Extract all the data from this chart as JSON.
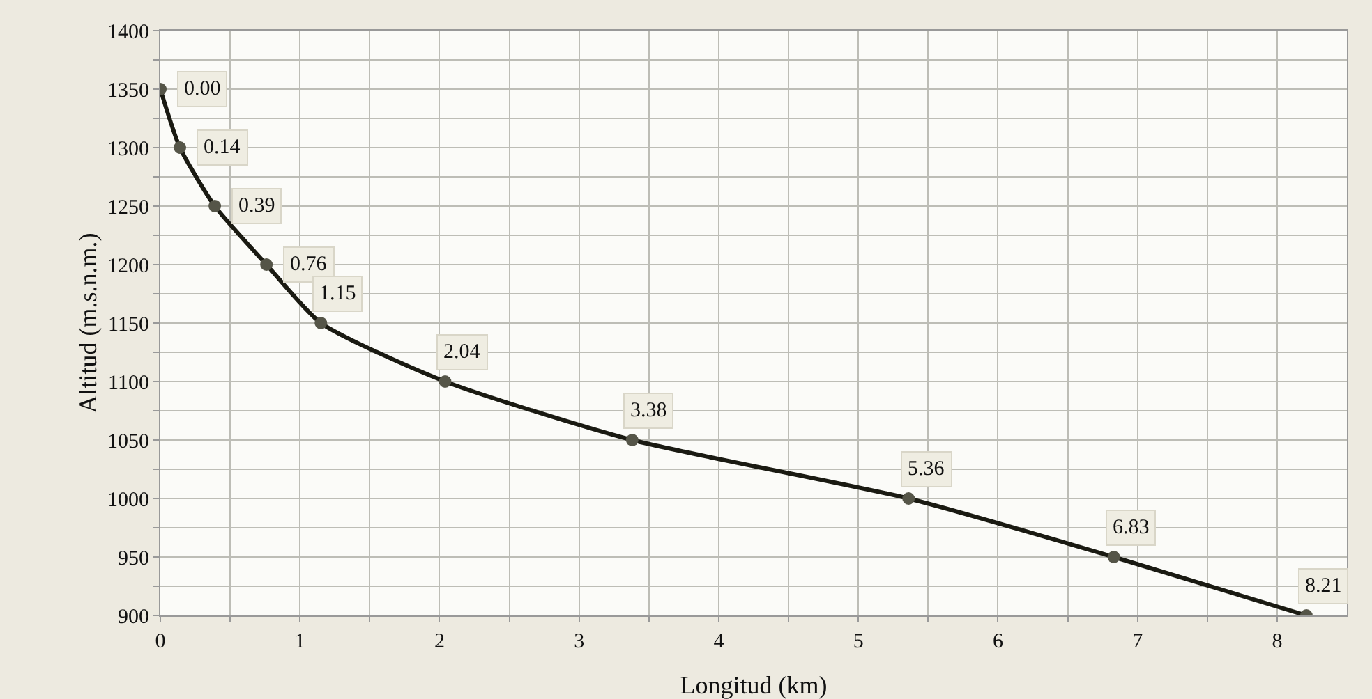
{
  "chart_data": {
    "type": "line",
    "xlabel": "Longitud (km)",
    "ylabel": "Altitud (m.s.n.m.)",
    "x": [
      0,
      0.14,
      0.39,
      0.76,
      1.15,
      2.04,
      3.38,
      5.36,
      6.83,
      8.21
    ],
    "series": [
      {
        "color": "#1a1a12",
        "values": [
          1350,
          1300,
          1250,
          1200,
          1150,
          1100,
          1050,
          1000,
          950,
          900
        ]
      }
    ],
    "annotations": [
      {
        "text": "0.00",
        "x": 0,
        "y": 1350
      },
      {
        "text": "0.14",
        "x": 0.14,
        "y": 1300
      },
      {
        "text": "0.39",
        "x": 0.39,
        "y": 1250
      },
      {
        "text": "0.76",
        "x": 0.76,
        "y": 1200
      },
      {
        "text": "1.15",
        "x": 1.15,
        "y": 1150
      },
      {
        "text": "2.04",
        "x": 2.04,
        "y": 1100
      },
      {
        "text": "3.38",
        "x": 3.38,
        "y": 1050
      },
      {
        "text": "5.36",
        "x": 5.36,
        "y": 1000
      },
      {
        "text": "6.83",
        "x": 6.83,
        "y": 950
      },
      {
        "text": "8.21",
        "x": 8.21,
        "y": 900
      }
    ],
    "xlim": [
      0,
      8.5
    ],
    "xticks": [
      0,
      {
        "value": 0.5,
        "label": null
      },
      1,
      {
        "value": 1.5,
        "label": null
      },
      2,
      {
        "value": 2.5,
        "label": null
      },
      3,
      {
        "value": 3.5,
        "label": null
      },
      4,
      {
        "value": 4.5,
        "label": null
      },
      5,
      {
        "value": 5.5,
        "label": null
      },
      6,
      {
        "value": 6.5,
        "label": null
      },
      7,
      {
        "value": 7.5,
        "label": null
      },
      8
    ],
    "ylim": [
      900,
      1400
    ],
    "yticks": [
      900,
      {
        "value": 925,
        "label": null
      },
      950,
      {
        "value": 975,
        "label": null
      },
      1000,
      {
        "value": 1025,
        "label": null
      },
      1050,
      {
        "value": 1075,
        "label": null
      },
      1100,
      {
        "value": 1125,
        "label": null
      },
      1150,
      {
        "value": 1175,
        "label": null
      },
      1200,
      {
        "value": 1225,
        "label": null
      },
      1250,
      {
        "value": 1275,
        "label": null
      },
      1300,
      {
        "value": 1325,
        "label": null
      },
      1350,
      {
        "value": 1375,
        "label": null
      },
      1400
    ],
    "grid": true,
    "marker": "circle",
    "line_style": "solid"
  }
}
